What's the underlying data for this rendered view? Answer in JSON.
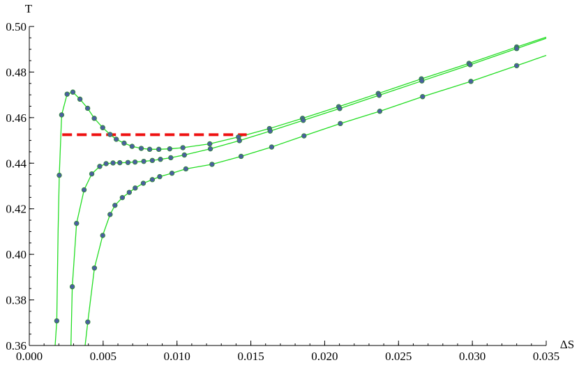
{
  "chart_data": {
    "type": "scatter",
    "title": "",
    "xlabel": "ΔS",
    "ylabel": "T",
    "xlim": [
      0.0,
      0.035
    ],
    "ylim": [
      0.36,
      0.5
    ],
    "x_ticks": [
      0.0,
      0.005,
      0.01,
      0.015,
      0.02,
      0.025,
      0.03,
      0.035
    ],
    "x_tick_labels": [
      "0.000",
      "0.005",
      "0.010",
      "0.015",
      "0.020",
      "0.025",
      "0.030",
      "0.035"
    ],
    "x_minor_step": 0.001,
    "y_ticks": [
      0.36,
      0.38,
      0.4,
      0.42,
      0.44,
      0.46,
      0.48,
      0.5
    ],
    "y_tick_labels": [
      "0.36",
      "0.38",
      "0.40",
      "0.42",
      "0.44",
      "0.46",
      "0.48",
      "0.50"
    ],
    "y_minor_step": 0.005,
    "grid": false,
    "legend": "none",
    "colors": {
      "curve": "#22dd22",
      "point": "#4a5fa0",
      "point_outline": "#2f8a2f",
      "reference_line": "#ee1111",
      "axis": "#000000"
    },
    "series": [
      {
        "points": [
          [
            0.00186,
            0.3708
          ],
          [
            0.00203,
            0.4347
          ],
          [
            0.00219,
            0.4612
          ],
          [
            0.00256,
            0.4703
          ],
          [
            0.00295,
            0.4712
          ],
          [
            0.00343,
            0.4681
          ],
          [
            0.00395,
            0.4641
          ],
          [
            0.0044,
            0.4597
          ],
          [
            0.00497,
            0.4556
          ],
          [
            0.00547,
            0.4526
          ],
          [
            0.00589,
            0.4505
          ],
          [
            0.00642,
            0.4488
          ],
          [
            0.00696,
            0.4474
          ],
          [
            0.00758,
            0.4465
          ],
          [
            0.00815,
            0.4461
          ],
          [
            0.00877,
            0.4461
          ],
          [
            0.00951,
            0.4463
          ],
          [
            0.0104,
            0.4468
          ],
          [
            0.01222,
            0.4485
          ],
          [
            0.01416,
            0.4515
          ],
          [
            0.01626,
            0.4552
          ],
          [
            0.0185,
            0.4597
          ],
          [
            0.02095,
            0.4648
          ],
          [
            0.02363,
            0.4706
          ],
          [
            0.02655,
            0.477
          ],
          [
            0.02977,
            0.4838
          ],
          [
            0.033,
            0.491
          ]
        ],
        "curve": [
          [
            0.00175,
            0.36
          ],
          [
            0.00186,
            0.3708
          ],
          [
            0.00195,
            0.41
          ],
          [
            0.00203,
            0.4347
          ],
          [
            0.00219,
            0.4612
          ],
          [
            0.00256,
            0.4703
          ],
          [
            0.00295,
            0.4712
          ],
          [
            0.00343,
            0.4681
          ],
          [
            0.00395,
            0.4641
          ],
          [
            0.0044,
            0.4597
          ],
          [
            0.00497,
            0.4556
          ],
          [
            0.00547,
            0.4526
          ],
          [
            0.00589,
            0.4505
          ],
          [
            0.00642,
            0.4488
          ],
          [
            0.00696,
            0.4474
          ],
          [
            0.00758,
            0.4465
          ],
          [
            0.00815,
            0.4461
          ],
          [
            0.00877,
            0.4461
          ],
          [
            0.00951,
            0.4463
          ],
          [
            0.0104,
            0.4468
          ],
          [
            0.01222,
            0.4485
          ],
          [
            0.01416,
            0.4515
          ],
          [
            0.01626,
            0.4552
          ],
          [
            0.0185,
            0.4597
          ],
          [
            0.02095,
            0.4648
          ],
          [
            0.02363,
            0.4706
          ],
          [
            0.02655,
            0.477
          ],
          [
            0.02977,
            0.4838
          ],
          [
            0.033,
            0.491
          ],
          [
            0.035,
            0.4953
          ]
        ]
      },
      {
        "points": [
          [
            0.00291,
            0.3858
          ],
          [
            0.0032,
            0.4136
          ],
          [
            0.00371,
            0.4283
          ],
          [
            0.00423,
            0.4353
          ],
          [
            0.00477,
            0.4386
          ],
          [
            0.0052,
            0.4398
          ],
          [
            0.00567,
            0.4401
          ],
          [
            0.00613,
            0.4402
          ],
          [
            0.00668,
            0.4403
          ],
          [
            0.00716,
            0.4405
          ],
          [
            0.00775,
            0.4408
          ],
          [
            0.00833,
            0.4412
          ],
          [
            0.00888,
            0.4417
          ],
          [
            0.00958,
            0.4424
          ],
          [
            0.0105,
            0.4436
          ],
          [
            0.01226,
            0.4463
          ],
          [
            0.01423,
            0.4499
          ],
          [
            0.01631,
            0.4541
          ],
          [
            0.01855,
            0.4588
          ],
          [
            0.02102,
            0.464
          ],
          [
            0.02369,
            0.4698
          ],
          [
            0.02658,
            0.4761
          ],
          [
            0.02985,
            0.4832
          ],
          [
            0.033,
            0.4903
          ]
        ],
        "curve": [
          [
            0.00282,
            0.36
          ],
          [
            0.00291,
            0.3858
          ],
          [
            0.0032,
            0.4136
          ],
          [
            0.00371,
            0.4283
          ],
          [
            0.00423,
            0.4353
          ],
          [
            0.00477,
            0.4386
          ],
          [
            0.0052,
            0.4398
          ],
          [
            0.00567,
            0.4401
          ],
          [
            0.00613,
            0.4402
          ],
          [
            0.00668,
            0.4403
          ],
          [
            0.00716,
            0.4405
          ],
          [
            0.00775,
            0.4408
          ],
          [
            0.00833,
            0.4412
          ],
          [
            0.00888,
            0.4417
          ],
          [
            0.00958,
            0.4424
          ],
          [
            0.0105,
            0.4436
          ],
          [
            0.01226,
            0.4463
          ],
          [
            0.01423,
            0.4499
          ],
          [
            0.01631,
            0.4541
          ],
          [
            0.01855,
            0.4588
          ],
          [
            0.02102,
            0.464
          ],
          [
            0.02369,
            0.4698
          ],
          [
            0.02658,
            0.4761
          ],
          [
            0.02985,
            0.4832
          ],
          [
            0.033,
            0.4903
          ],
          [
            0.035,
            0.4948
          ]
        ]
      },
      {
        "points": [
          [
            0.00396,
            0.3703
          ],
          [
            0.00441,
            0.394
          ],
          [
            0.00497,
            0.4083
          ],
          [
            0.00547,
            0.4175
          ],
          [
            0.0058,
            0.4215
          ],
          [
            0.0063,
            0.4249
          ],
          [
            0.00677,
            0.4272
          ],
          [
            0.00717,
            0.4291
          ],
          [
            0.00772,
            0.4312
          ],
          [
            0.00833,
            0.4328
          ],
          [
            0.00883,
            0.4341
          ],
          [
            0.00966,
            0.4356
          ],
          [
            0.0106,
            0.4375
          ],
          [
            0.01237,
            0.4395
          ],
          [
            0.01434,
            0.443
          ],
          [
            0.01641,
            0.4471
          ],
          [
            0.0186,
            0.452
          ],
          [
            0.02106,
            0.4574
          ],
          [
            0.02373,
            0.4628
          ],
          [
            0.02663,
            0.4692
          ],
          [
            0.0299,
            0.4759
          ],
          [
            0.033,
            0.4828
          ]
        ],
        "curve": [
          [
            0.00378,
            0.36
          ],
          [
            0.00396,
            0.3703
          ],
          [
            0.00441,
            0.394
          ],
          [
            0.00497,
            0.4083
          ],
          [
            0.00547,
            0.4175
          ],
          [
            0.0058,
            0.4215
          ],
          [
            0.0063,
            0.4249
          ],
          [
            0.00677,
            0.4272
          ],
          [
            0.00717,
            0.4291
          ],
          [
            0.00772,
            0.4312
          ],
          [
            0.00833,
            0.4328
          ],
          [
            0.00883,
            0.4341
          ],
          [
            0.00966,
            0.4356
          ],
          [
            0.0106,
            0.4375
          ],
          [
            0.01237,
            0.4395
          ],
          [
            0.01434,
            0.443
          ],
          [
            0.01641,
            0.4471
          ],
          [
            0.0186,
            0.452
          ],
          [
            0.02106,
            0.4574
          ],
          [
            0.02373,
            0.4628
          ],
          [
            0.02663,
            0.4692
          ],
          [
            0.0299,
            0.4759
          ],
          [
            0.033,
            0.4828
          ],
          [
            0.035,
            0.4873
          ]
        ]
      }
    ],
    "reference_line": {
      "style": "dashed",
      "y": 0.4525,
      "x_start": 0.00223,
      "x_end": 0.01472
    }
  }
}
